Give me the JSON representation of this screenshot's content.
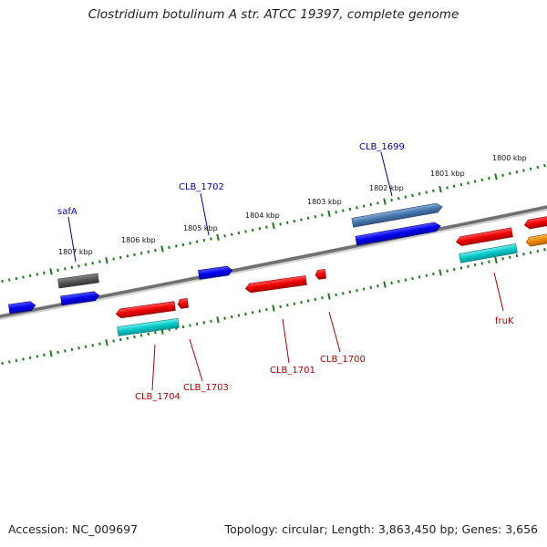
{
  "title": "Clostridium botulinum A str. ATCC 19397, complete genome",
  "accession": "Accession: NC_009697",
  "stats": "Topology: circular; Length: 3,863,450 bp; Genes: 3,656",
  "kbp_labels": [
    "1800 kbp",
    "1801 kbp",
    "1802 kbp",
    "1803 kbp",
    "1804 kbp",
    "1805 kbp",
    "1806 kbp",
    "1807 kbp"
  ],
  "gene_labels": {
    "safA": "safA",
    "clb_1702": "CLB_1702",
    "clb_1699": "CLB_1699",
    "clb_1704": "CLB_1704",
    "clb_1703": "CLB_1703",
    "clb_1701": "CLB_1701",
    "clb_1700": "CLB_1700",
    "fruK": "fruK"
  },
  "colors": {
    "forward_cds": "#0000ee",
    "reverse_cds": "#ee0000",
    "gene_grey": "#555555",
    "gene_steel": "#4477aa",
    "rna_cyan": "#00c8c8",
    "orange": "#ee8800",
    "backbone": "#777777",
    "tick": "#1a7a1a",
    "label_forward": "#0000aa",
    "label_reverse": "#b00000"
  }
}
